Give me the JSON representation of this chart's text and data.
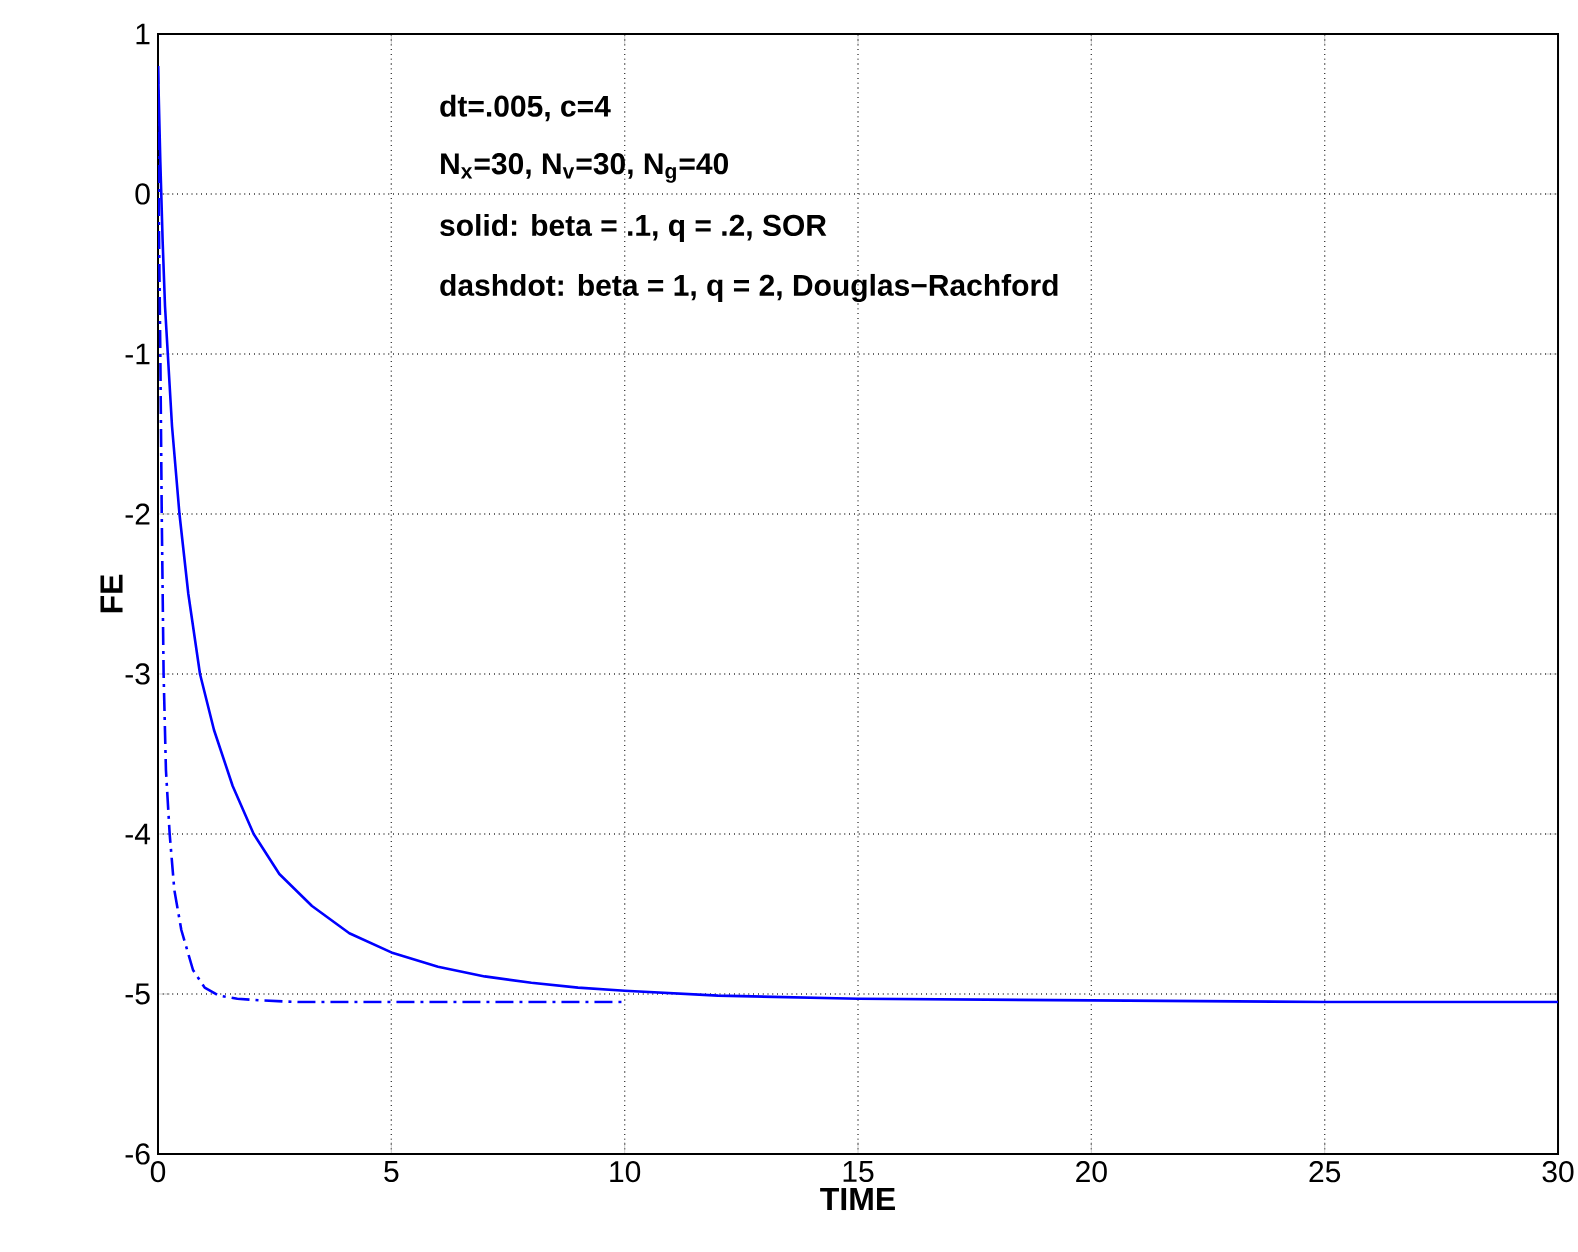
{
  "chart_data": {
    "type": "line",
    "xlabel": "TIME",
    "ylabel": "FE",
    "xlim": [
      0,
      30
    ],
    "ylim": [
      -6,
      1
    ],
    "xticks": [
      0,
      5,
      10,
      15,
      20,
      25,
      30
    ],
    "yticks": [
      -6,
      -5,
      -4,
      -3,
      -2,
      -1,
      0,
      1
    ],
    "grid": true,
    "annotations": [
      "dt=.005, c=4",
      "N$_{x}$=30, N$_{v}$=30, N$_{g}$=40",
      "solid: beta = .1, q = .2, SOR",
      "dashdot: beta = 1, q = 2, Douglas−Rachford"
    ],
    "series": [
      {
        "color": "#0000ff",
        "line_style": "solid",
        "x": [
          0,
          0.05,
          0.1,
          0.15,
          0.21,
          0.3,
          0.46,
          0.65,
          0.9,
          1.2,
          1.6,
          2.05,
          2.6,
          3.3,
          4.1,
          5,
          6,
          7,
          8,
          9,
          10,
          12,
          15,
          20,
          25,
          30
        ],
        "values": [
          0.8,
          0.2,
          -0.3,
          -0.7,
          -1,
          -1.45,
          -2,
          -2.5,
          -3,
          -3.35,
          -3.7,
          -4,
          -4.25,
          -4.45,
          -4.62,
          -4.74,
          -4.83,
          -4.89,
          -4.93,
          -4.96,
          -4.98,
          -5.01,
          -5.03,
          -5.04,
          -5.05,
          -5.05
        ]
      },
      {
        "color": "#0000ff",
        "line_style": "dashdot",
        "x": [
          0,
          0.02,
          0.05,
          0.08,
          0.12,
          0.17,
          0.25,
          0.35,
          0.5,
          0.75,
          1,
          1.3,
          1.7,
          2.2,
          3,
          5,
          10
        ],
        "values": [
          0.8,
          -0.2,
          -1,
          -2,
          -3,
          -3.6,
          -4,
          -4.35,
          -4.6,
          -4.85,
          -4.96,
          -5.01,
          -5.03,
          -5.04,
          -5.05,
          -5.05,
          -5.05
        ]
      }
    ]
  }
}
